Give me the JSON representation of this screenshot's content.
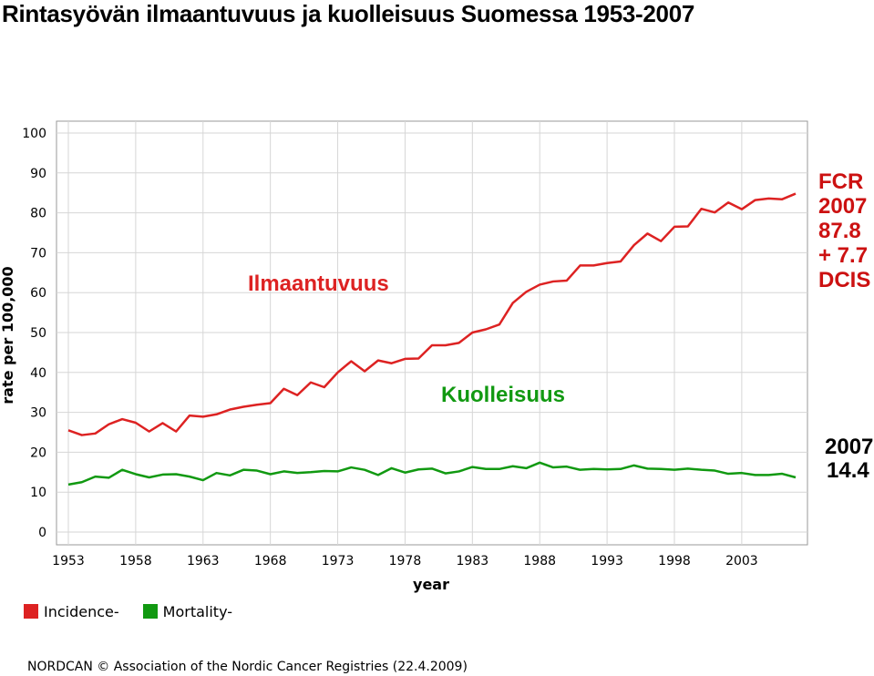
{
  "title": "Rintasyövän ilmaantuvuus ja kuolleisuus Suomessa 1953-2007",
  "chart_data": {
    "type": "line",
    "xlabel": "year",
    "ylabel": "rate per 100,000",
    "ylim": [
      0,
      100
    ],
    "xlim": [
      1953,
      2007
    ],
    "yticks": [
      "0",
      "10",
      "20",
      "30",
      "40",
      "50",
      "60",
      "70",
      "80",
      "90",
      "100"
    ],
    "xticks": [
      "1953",
      "1958",
      "1963",
      "1968",
      "1973",
      "1978",
      "1983",
      "1988",
      "1993",
      "1998",
      "2003"
    ],
    "grid": true,
    "legend_placement": "bottom-left",
    "x": [
      1953,
      1954,
      1955,
      1956,
      1957,
      1958,
      1959,
      1960,
      1961,
      1962,
      1963,
      1964,
      1965,
      1966,
      1967,
      1968,
      1969,
      1970,
      1971,
      1972,
      1973,
      1974,
      1975,
      1976,
      1977,
      1978,
      1979,
      1980,
      1981,
      1982,
      1983,
      1984,
      1985,
      1986,
      1987,
      1988,
      1989,
      1990,
      1991,
      1992,
      1993,
      1994,
      1995,
      1996,
      1997,
      1998,
      1999,
      2000,
      2001,
      2002,
      2003,
      2004,
      2005,
      2006,
      2007
    ],
    "series": [
      {
        "name": "Incidence-",
        "color": "#dd2222",
        "values": [
          25.5,
          24.3,
          24.7,
          27.0,
          28.3,
          27.4,
          25.2,
          27.3,
          25.2,
          29.2,
          28.9,
          29.5,
          30.7,
          31.4,
          31.9,
          32.3,
          35.9,
          34.3,
          37.5,
          36.3,
          40.0,
          42.8,
          40.3,
          43.0,
          42.3,
          43.4,
          43.5,
          46.8,
          46.8,
          47.4,
          50.0,
          50.8,
          52.0,
          57.4,
          60.2,
          62.0,
          62.8,
          63.0,
          66.8,
          66.8,
          67.4,
          67.8,
          71.9,
          74.8,
          72.9,
          76.5,
          76.6,
          81.0,
          80.1,
          82.6,
          80.9,
          83.2,
          83.6,
          83.4,
          84.8
        ]
      },
      {
        "name": "Mortality-",
        "color": "#119911",
        "values": [
          11.9,
          12.5,
          13.9,
          13.6,
          15.6,
          14.5,
          13.7,
          14.4,
          14.5,
          13.9,
          13.0,
          14.8,
          14.2,
          15.6,
          15.4,
          14.5,
          15.2,
          14.8,
          15.0,
          15.3,
          15.2,
          16.2,
          15.6,
          14.3,
          16.0,
          14.9,
          15.7,
          15.9,
          14.7,
          15.2,
          16.3,
          15.8,
          15.8,
          16.5,
          16.0,
          17.4,
          16.2,
          16.4,
          15.6,
          15.8,
          15.7,
          15.8,
          16.7,
          15.9,
          15.8,
          15.6,
          15.9,
          15.6,
          15.4,
          14.6,
          14.8,
          14.3,
          14.3,
          14.6,
          13.7
        ]
      }
    ],
    "annotations": {
      "incidence_label": "Ilmaantuvuus",
      "mortality_label": "Kuolleisuus",
      "fcr_lines": [
        "FCR",
        "2007",
        "87.8",
        "+ 7.7",
        "DCIS"
      ],
      "mortality_note_lines": [
        "2007",
        "14.4"
      ]
    }
  },
  "footer": "NORDCAN © Association of the Nordic Cancer Registries (22.4.2009)"
}
